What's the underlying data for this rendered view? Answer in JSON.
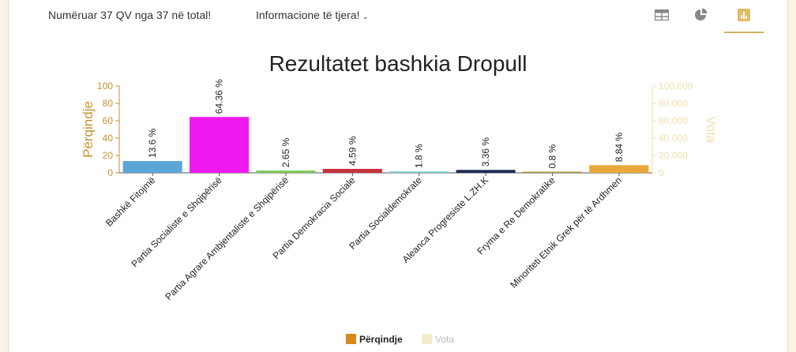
{
  "header": {
    "count_text": "Numëruar 37 QV nga 37 në total!",
    "info_menu_label": "Informacione të tjera!",
    "views": [
      {
        "name": "table-view",
        "icon": "table-icon"
      },
      {
        "name": "pie-view",
        "icon": "pie-chart-icon"
      },
      {
        "name": "bar-view",
        "icon": "bar-chart-icon",
        "active": true
      }
    ]
  },
  "colors": {
    "accent": "#d4b060",
    "left_axis": "#c8902c",
    "right_axis": "#f0e0ac",
    "page_bg": "#fbf3e6"
  },
  "chart_data": {
    "type": "bar",
    "title": "Rezultatet bashkia Dropull",
    "ylabel": "Përqindje",
    "y2label": "Vota",
    "ylim": [
      0,
      100
    ],
    "y2lim": [
      0,
      100000
    ],
    "yticks": [
      "0",
      "20",
      "40",
      "60",
      "80",
      "100"
    ],
    "y2ticks": [
      "0",
      "20,000",
      "40,000",
      "60,000",
      "80,000",
      "100,000"
    ],
    "categories": [
      "Bashkë Fitojmë",
      "Partia Socialiste e Shqipërisë",
      "Partia Agrare Ambjentaliste e Shqipërisë",
      "Partia Demokracia Sociale",
      "Partia Socialdemokrate",
      "Aleanca Progresiste L.ZH.K",
      "Fryma e Re Demokratike",
      "Minoriteti Etnik Grek për të Ardhmen"
    ],
    "values": [
      13.6,
      64.36,
      2.65,
      4.59,
      1.8,
      3.36,
      0.8,
      8.84
    ],
    "labels": [
      "13.6 %",
      "64.36 %",
      "2.65 %",
      "4.59 %",
      "1.8 %",
      "3.36 %",
      "0.8 %",
      "8.84 %"
    ],
    "bar_colors": [
      "#5aa7d6",
      "#f01af0",
      "#7fc75a",
      "#c8323c",
      "#86d2d2",
      "#1e2a52",
      "#a89a3a",
      "#e8a83a"
    ],
    "legend": [
      {
        "name": "Përqindje",
        "color": "#d68a1a"
      },
      {
        "name": "Vota",
        "color": "#f5ebc8"
      }
    ],
    "legend_position": "bottom",
    "grid": false
  }
}
